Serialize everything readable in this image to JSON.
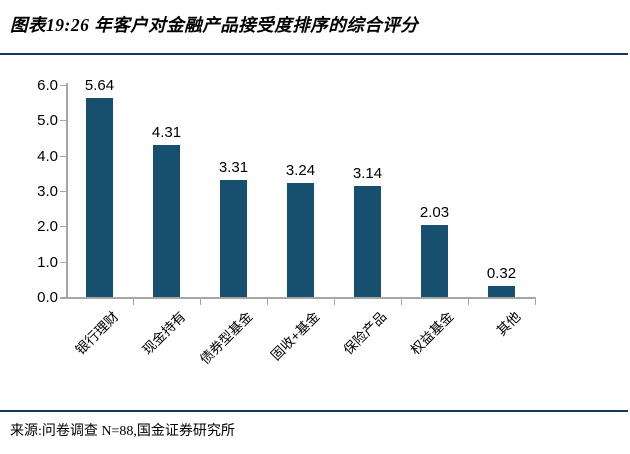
{
  "header": {
    "title": "图表19:26 年客户对金融产品接受度排序的综合评分"
  },
  "footer": {
    "source": "来源:问卷调查 N=88,国金证券研究所"
  },
  "colors": {
    "bar": "#17506F",
    "rule": "#17375E",
    "axis": "#A6A6A6",
    "text": "#000000"
  },
  "chart_data": {
    "type": "bar",
    "title": "26 年客户对金融产品接受度排序的综合评分",
    "categories": [
      "银行理财",
      "现金持有",
      "债券型基金",
      "固收+基金",
      "保险产品",
      "权益基金",
      "其他"
    ],
    "values": [
      5.64,
      4.31,
      3.31,
      3.24,
      3.14,
      2.03,
      0.32
    ],
    "value_labels": [
      "5.64",
      "4.31",
      "3.31",
      "3.24",
      "3.14",
      "2.03",
      "0.32"
    ],
    "xlabel": "",
    "ylabel": "",
    "ylim": [
      0,
      6
    ],
    "ytick_step": 1.0,
    "yticks": [
      "6.0",
      "5.0",
      "4.0",
      "3.0",
      "2.0",
      "1.0",
      "0.0"
    ],
    "grid": false,
    "legend": "none",
    "data_labels": true,
    "category_label_rotation_deg": 45
  }
}
